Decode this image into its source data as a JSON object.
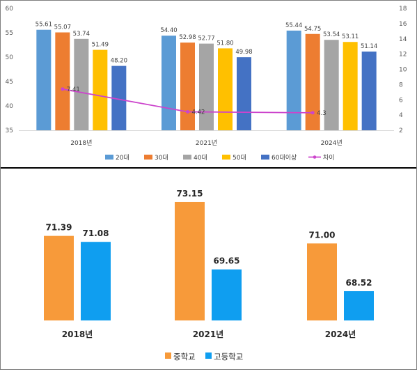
{
  "chart_data": [
    {
      "type": "bar",
      "categories": [
        "2018년",
        "2021년",
        "2024년"
      ],
      "series": [
        {
          "name": "20대",
          "values": [
            55.61,
            54.4,
            55.44
          ],
          "color": "#5b9bd5"
        },
        {
          "name": "30대",
          "values": [
            55.07,
            52.98,
            54.75
          ],
          "color": "#ed7d31"
        },
        {
          "name": "40대",
          "values": [
            53.74,
            52.77,
            53.54
          ],
          "color": "#a5a5a5"
        },
        {
          "name": "50대",
          "values": [
            51.49,
            51.8,
            53.11
          ],
          "color": "#ffc000"
        },
        {
          "name": "60대이상",
          "values": [
            48.2,
            49.98,
            51.14
          ],
          "color": "#4472c4"
        }
      ],
      "line_series": {
        "name": "차이",
        "values": [
          7.41,
          4.42,
          4.3
        ],
        "labels": [
          "7.41",
          "4.42",
          "4.3"
        ],
        "color": "#cc44cc",
        "axis": "right"
      },
      "value_labels": [
        [
          "55.61",
          "54.40",
          "55.44"
        ],
        [
          "55.07",
          "52.98",
          "54.75"
        ],
        [
          "53.74",
          "52.77",
          "53.54"
        ],
        [
          "51.49",
          "51.80",
          "53.11"
        ],
        [
          "48.20",
          "49.98",
          "51.14"
        ]
      ],
      "ylim": [
        35,
        60
      ],
      "yticks": [
        "35",
        "40",
        "45",
        "50",
        "55",
        "60"
      ],
      "y2lim": [
        2,
        18
      ],
      "y2ticks": [
        "2",
        "4",
        "6",
        "8",
        "10",
        "12",
        "14",
        "16",
        "18"
      ],
      "grid": false,
      "legend": "bottom"
    },
    {
      "type": "bar",
      "categories": [
        "2018년",
        "2021년",
        "2024년"
      ],
      "series": [
        {
          "name": "중학교",
          "values": [
            71.39,
            73.15,
            71.0
          ],
          "color": "#f79a3a"
        },
        {
          "name": "고등학교",
          "values": [
            71.08,
            69.65,
            68.52
          ],
          "color": "#0f9ef0"
        }
      ],
      "value_labels": [
        [
          "71.39",
          "73.15",
          "71.00"
        ],
        [
          "71.08",
          "69.65",
          "68.52"
        ]
      ],
      "axes_visible": false,
      "legend": "bottom"
    }
  ]
}
